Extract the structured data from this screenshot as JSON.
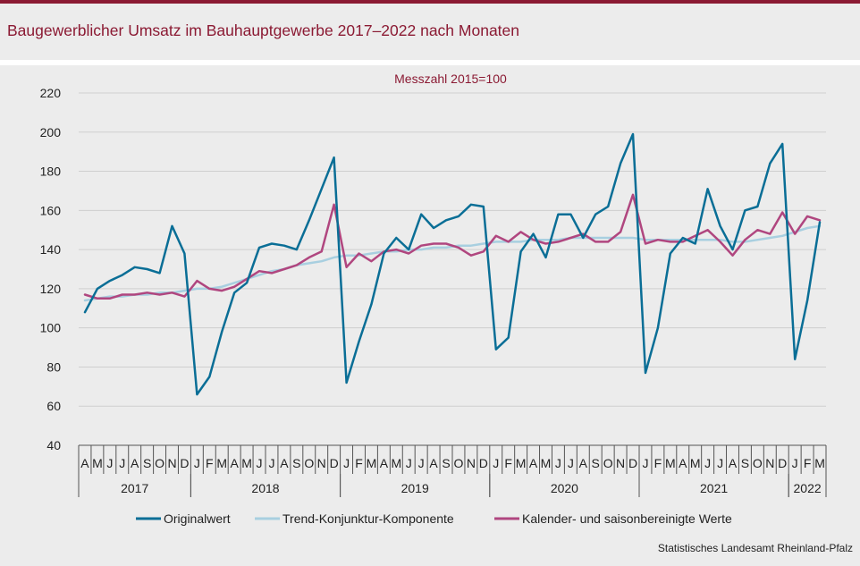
{
  "page": {
    "title": "Baugewerblicher Umsatz im Bauhauptgewerbe 2017–2022 nach Monaten",
    "source": "Statistisches Landesamt  Rheinland-Pfalz"
  },
  "chart_data": {
    "type": "line",
    "subtitle": "Messzahl  2015=100",
    "ylim": [
      40,
      220
    ],
    "yticks": [
      40,
      60,
      80,
      100,
      120,
      140,
      160,
      180,
      200,
      220
    ],
    "grid": true,
    "legend_position": "bottom",
    "month_labels": [
      "A",
      "M",
      "J",
      "J",
      "A",
      "S",
      "O",
      "N",
      "D",
      "J",
      "F",
      "M",
      "A",
      "M",
      "J",
      "J",
      "A",
      "S",
      "O",
      "N",
      "D",
      "J",
      "F",
      "M",
      "A",
      "M",
      "J",
      "J",
      "A",
      "S",
      "O",
      "N",
      "D",
      "J",
      "F",
      "M",
      "A",
      "M",
      "J",
      "J",
      "A",
      "S",
      "O",
      "N",
      "D",
      "J",
      "F",
      "M",
      "A",
      "M",
      "J",
      "J",
      "A",
      "S",
      "O",
      "N",
      "D",
      "J",
      "F",
      "M"
    ],
    "year_groups": [
      {
        "label": "2017",
        "start": 0,
        "end": 8
      },
      {
        "label": "2018",
        "start": 9,
        "end": 20
      },
      {
        "label": "2019",
        "start": 21,
        "end": 32
      },
      {
        "label": "2020",
        "start": 33,
        "end": 44
      },
      {
        "label": "2021",
        "start": 45,
        "end": 56
      },
      {
        "label": "2022",
        "start": 57,
        "end": 59
      }
    ],
    "series": [
      {
        "name": "Originalwert",
        "color": "#0a6e96",
        "values": [
          108,
          120,
          124,
          127,
          131,
          130,
          128,
          152,
          138,
          66,
          75,
          98,
          118,
          123,
          141,
          143,
          142,
          140,
          155,
          171,
          187,
          72,
          93,
          112,
          138,
          146,
          140,
          158,
          151,
          155,
          157,
          163,
          162,
          89,
          95,
          139,
          148,
          136,
          158,
          158,
          146,
          158,
          162,
          184,
          199,
          77,
          100,
          138,
          146,
          143,
          171,
          152,
          140,
          160,
          162,
          184,
          194,
          84,
          114,
          154
        ]
      },
      {
        "name": "Trend-Konjunktur-Komponente",
        "color": "#a8cfe0",
        "values": [
          114,
          115,
          116,
          116,
          117,
          117,
          118,
          118,
          119,
          120,
          120,
          121,
          123,
          125,
          127,
          129,
          130,
          132,
          133,
          134,
          136,
          137,
          137,
          138,
          139,
          139,
          140,
          140,
          141,
          141,
          142,
          142,
          143,
          144,
          144,
          144,
          145,
          145,
          145,
          146,
          146,
          146,
          146,
          146,
          146,
          145,
          145,
          145,
          145,
          145,
          145,
          145,
          144,
          144,
          145,
          146,
          147,
          149,
          151,
          152
        ]
      },
      {
        "name": "Kalender- und saisonbereinigte Werte",
        "color": "#b0467f",
        "values": [
          117,
          115,
          115,
          117,
          117,
          118,
          117,
          118,
          116,
          124,
          120,
          119,
          121,
          125,
          129,
          128,
          130,
          132,
          136,
          139,
          163,
          131,
          138,
          134,
          139,
          140,
          138,
          142,
          143,
          143,
          141,
          137,
          139,
          147,
          144,
          149,
          145,
          143,
          144,
          146,
          148,
          144,
          144,
          149,
          168,
          143,
          145,
          144,
          144,
          147,
          150,
          144,
          137,
          145,
          150,
          148,
          159,
          148,
          157,
          155
        ]
      }
    ]
  }
}
